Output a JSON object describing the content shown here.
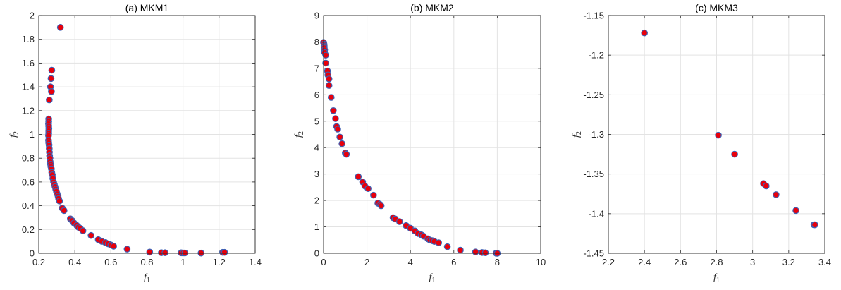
{
  "chart_data": [
    {
      "type": "scatter",
      "title": "(a) MKM1",
      "xlabel": "f",
      "xlabel_sub": "1",
      "ylabel": "f",
      "ylabel_sub": "2",
      "xlim": [
        0.2,
        1.4
      ],
      "ylim": [
        0,
        2
      ],
      "xticks": [
        0.2,
        0.4,
        0.6,
        0.8,
        1,
        1.2,
        1.4
      ],
      "xtick_labels": [
        "0.2",
        "0.4",
        "0.6",
        "0.8",
        "1",
        "1.2",
        "1.4"
      ],
      "yticks": [
        0,
        0.2,
        0.4,
        0.6,
        0.8,
        1,
        1.2,
        1.4,
        1.6,
        1.8,
        2
      ],
      "ytick_labels": [
        "0",
        "0.2",
        "0.4",
        "0.6",
        "0.8",
        "1",
        "1.2",
        "1.4",
        "1.6",
        "1.8",
        "2"
      ],
      "grid": true,
      "marker_fill": "#e8000b",
      "marker_edge": "#3f5fb3",
      "points": [
        [
          0.32,
          1.9
        ],
        [
          0.272,
          1.54
        ],
        [
          0.268,
          1.47
        ],
        [
          0.265,
          1.4
        ],
        [
          0.27,
          1.36
        ],
        [
          0.258,
          1.29
        ],
        [
          0.255,
          1.13
        ],
        [
          0.255,
          1.11
        ],
        [
          0.254,
          1.09
        ],
        [
          0.255,
          1.07
        ],
        [
          0.256,
          1.05
        ],
        [
          0.255,
          1.03
        ],
        [
          0.255,
          1.01
        ],
        [
          0.254,
          0.99
        ],
        [
          0.254,
          0.95
        ],
        [
          0.255,
          0.93
        ],
        [
          0.257,
          0.91
        ],
        [
          0.258,
          0.88
        ],
        [
          0.259,
          0.85
        ],
        [
          0.26,
          0.82
        ],
        [
          0.262,
          0.8
        ],
        [
          0.263,
          0.77
        ],
        [
          0.265,
          0.75
        ],
        [
          0.267,
          0.73
        ],
        [
          0.27,
          0.71
        ],
        [
          0.272,
          0.68
        ],
        [
          0.275,
          0.66
        ],
        [
          0.278,
          0.63
        ],
        [
          0.282,
          0.6
        ],
        [
          0.286,
          0.58
        ],
        [
          0.29,
          0.56
        ],
        [
          0.294,
          0.54
        ],
        [
          0.298,
          0.52
        ],
        [
          0.302,
          0.5
        ],
        [
          0.307,
          0.48
        ],
        [
          0.31,
          0.46
        ],
        [
          0.315,
          0.44
        ],
        [
          0.33,
          0.38
        ],
        [
          0.34,
          0.36
        ],
        [
          0.375,
          0.29
        ],
        [
          0.385,
          0.275
        ],
        [
          0.395,
          0.255
        ],
        [
          0.41,
          0.235
        ],
        [
          0.42,
          0.22
        ],
        [
          0.43,
          0.21
        ],
        [
          0.445,
          0.19
        ],
        [
          0.49,
          0.15
        ],
        [
          0.53,
          0.115
        ],
        [
          0.55,
          0.1
        ],
        [
          0.57,
          0.09
        ],
        [
          0.585,
          0.08
        ],
        [
          0.6,
          0.07
        ],
        [
          0.615,
          0.06
        ],
        [
          0.69,
          0.035
        ],
        [
          0.815,
          0.01
        ],
        [
          0.88,
          0.005
        ],
        [
          0.9,
          0.005
        ],
        [
          0.99,
          0.004
        ],
        [
          1.0,
          0.003
        ],
        [
          1.01,
          0.003
        ],
        [
          1.1,
          0.002
        ],
        [
          1.22,
          0.008
        ],
        [
          1.23,
          0.008
        ]
      ]
    },
    {
      "type": "scatter",
      "title": "(b) MKM2",
      "xlabel": "f",
      "xlabel_sub": "1",
      "ylabel": "f",
      "ylabel_sub": "2",
      "xlim": [
        0,
        10
      ],
      "ylim": [
        0,
        9
      ],
      "xticks": [
        0,
        2,
        4,
        6,
        8,
        10
      ],
      "xtick_labels": [
        "0",
        "2",
        "4",
        "6",
        "8",
        "10"
      ],
      "yticks": [
        0,
        1,
        2,
        3,
        4,
        5,
        6,
        7,
        8,
        9
      ],
      "ytick_labels": [
        "0",
        "1",
        "2",
        "3",
        "4",
        "5",
        "6",
        "7",
        "8",
        "9"
      ],
      "grid": true,
      "marker_fill": "#e8000b",
      "marker_edge": "#3f5fb3",
      "points": [
        [
          0.0,
          7.98
        ],
        [
          0.02,
          7.92
        ],
        [
          0.03,
          7.85
        ],
        [
          0.03,
          7.78
        ],
        [
          0.05,
          7.7
        ],
        [
          0.05,
          7.6
        ],
        [
          0.1,
          7.5
        ],
        [
          0.1,
          7.2
        ],
        [
          0.18,
          6.9
        ],
        [
          0.2,
          6.75
        ],
        [
          0.25,
          6.6
        ],
        [
          0.25,
          6.35
        ],
        [
          0.35,
          5.9
        ],
        [
          0.45,
          5.4
        ],
        [
          0.55,
          5.1
        ],
        [
          0.6,
          4.8
        ],
        [
          0.65,
          4.7
        ],
        [
          0.75,
          4.4
        ],
        [
          0.85,
          4.15
        ],
        [
          1.0,
          3.8
        ],
        [
          1.05,
          3.75
        ],
        [
          1.6,
          2.9
        ],
        [
          1.8,
          2.7
        ],
        [
          1.9,
          2.55
        ],
        [
          2.05,
          2.45
        ],
        [
          2.3,
          2.2
        ],
        [
          2.5,
          1.9
        ],
        [
          2.6,
          1.85
        ],
        [
          2.65,
          1.8
        ],
        [
          3.2,
          1.35
        ],
        [
          3.3,
          1.3
        ],
        [
          3.5,
          1.2
        ],
        [
          3.8,
          1.05
        ],
        [
          4.0,
          0.95
        ],
        [
          4.2,
          0.85
        ],
        [
          4.35,
          0.75
        ],
        [
          4.5,
          0.7
        ],
        [
          4.6,
          0.65
        ],
        [
          4.8,
          0.55
        ],
        [
          4.9,
          0.5
        ],
        [
          5.0,
          0.48
        ],
        [
          5.1,
          0.45
        ],
        [
          5.3,
          0.4
        ],
        [
          5.7,
          0.25
        ],
        [
          6.3,
          0.12
        ],
        [
          7.0,
          0.05
        ],
        [
          7.3,
          0.03
        ],
        [
          7.45,
          0.02
        ],
        [
          7.95,
          0.005
        ],
        [
          8.0,
          0.0
        ]
      ]
    },
    {
      "type": "scatter",
      "title": "(c) MKM3",
      "xlabel": "f",
      "xlabel_sub": "1",
      "ylabel": "f",
      "ylabel_sub": "2",
      "xlim": [
        2.2,
        3.4
      ],
      "ylim": [
        -1.45,
        -1.15
      ],
      "xticks": [
        2.2,
        2.4,
        2.6,
        2.8,
        3,
        3.2,
        3.4
      ],
      "xtick_labels": [
        "2.2",
        "2.4",
        "2.6",
        "2.8",
        "3",
        "3.2",
        "3.4"
      ],
      "yticks": [
        -1.45,
        -1.4,
        -1.35,
        -1.3,
        -1.25,
        -1.2,
        -1.15
      ],
      "ytick_labels": [
        "-1.45",
        "-1.4",
        "-1.35",
        "-1.3",
        "-1.25",
        "-1.2",
        "-1.15"
      ],
      "grid": true,
      "marker_fill": "#e8000b",
      "marker_edge": "#3f5fb3",
      "points": [
        [
          2.4,
          -1.172
        ],
        [
          2.81,
          -1.301
        ],
        [
          2.9,
          -1.325
        ],
        [
          3.06,
          -1.362
        ],
        [
          3.075,
          -1.365
        ],
        [
          3.13,
          -1.376
        ],
        [
          3.24,
          -1.396
        ],
        [
          3.34,
          -1.414
        ],
        [
          3.345,
          -1.414
        ]
      ]
    }
  ]
}
